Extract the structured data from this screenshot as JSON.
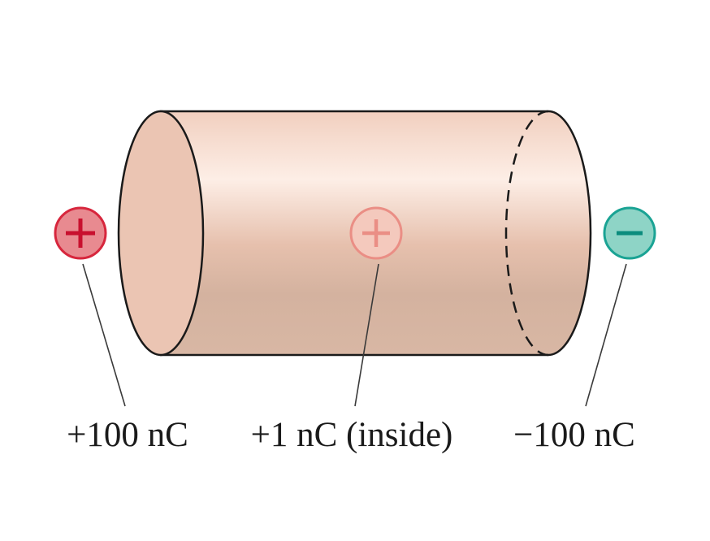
{
  "charges": {
    "left": {
      "label": "+100 nC",
      "sign": "+",
      "icon": "plus-sign",
      "fill": "#e88a90",
      "stroke": "#d7263d"
    },
    "inside": {
      "label": "+1 nC (inside)",
      "sign": "+",
      "icon": "plus-sign",
      "fill": "#f4c9bd",
      "stroke": "#ea8e85"
    },
    "right": {
      "label": "−100 nC",
      "sign": "−",
      "icon": "minus-sign",
      "fill": "#8ed4c6",
      "stroke": "#1aa394"
    }
  },
  "colors": {
    "cylinder_light": "#fdeee6",
    "cylinder_mid": "#f0cdbd",
    "cylinder_dark": "#d4b29f",
    "cylinder_end": "#ebc5b3",
    "outline": "#1a1a1a",
    "leader_line": "#3a3a3a"
  }
}
